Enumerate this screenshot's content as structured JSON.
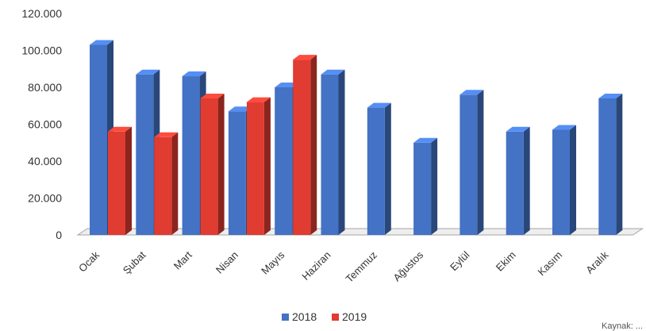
{
  "chart_data": {
    "type": "bar",
    "style": "3d-clustered-column",
    "categories": [
      "Ocak",
      "Şubat",
      "Mart",
      "Nisan",
      "Mayıs",
      "Haziran",
      "Temmuz",
      "Ağustos",
      "Eylül",
      "Ekim",
      "Kasım",
      "Aralık"
    ],
    "series": [
      {
        "name": "2018",
        "color": "#4472C4",
        "values": [
          103000,
          87000,
          86000,
          67000,
          80000,
          87000,
          69000,
          50000,
          76000,
          56000,
          57000,
          74000
        ]
      },
      {
        "name": "2019",
        "color": "#E03C31",
        "values": [
          56000,
          53000,
          74000,
          72000,
          95000,
          null,
          null,
          null,
          null,
          null,
          null,
          null
        ]
      }
    ],
    "y_ticks": [
      "0",
      "20.000",
      "40.000",
      "60.000",
      "80.000",
      "100.000",
      "120.000"
    ],
    "ylim": [
      0,
      120000
    ],
    "grid": false,
    "legend_position": "bottom",
    "title": "",
    "xlabel": "",
    "ylabel": ""
  },
  "footnote": "Kaynak: ..."
}
